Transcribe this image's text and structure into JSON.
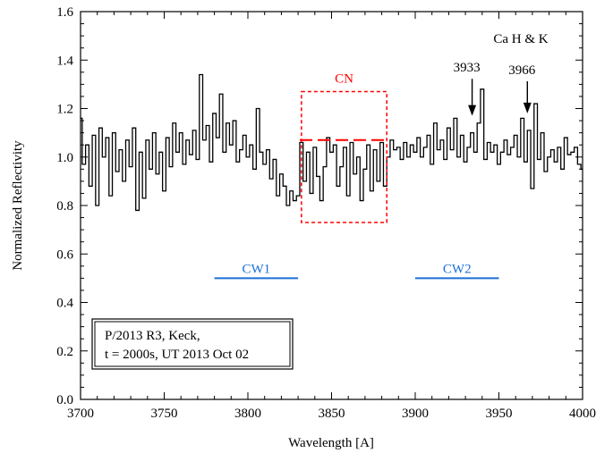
{
  "chart_data": {
    "type": "line",
    "title": "",
    "xlabel": "Wavelength [A]",
    "ylabel": "Normalized Reflectivity",
    "xlim": [
      3700,
      4000
    ],
    "ylim": [
      0.0,
      1.6
    ],
    "x_ticks": [
      3700,
      3750,
      3800,
      3850,
      3900,
      3950,
      4000
    ],
    "y_ticks": [
      0.0,
      0.2,
      0.4,
      0.6,
      0.8,
      1.0,
      1.2,
      1.4,
      1.6
    ],
    "x_tick_labels": [
      "3700",
      "3750",
      "3800",
      "3850",
      "3900",
      "3950",
      "4000"
    ],
    "y_tick_labels": [
      "0.0",
      "0.2",
      "0.4",
      "0.6",
      "0.8",
      "1.0",
      "1.2",
      "1.4",
      "1.6"
    ],
    "grid": false,
    "series": [
      {
        "style": "step",
        "color": "#000000",
        "x": [
          3700,
          3702,
          3704,
          3706,
          3708,
          3710,
          3712,
          3714,
          3716,
          3718,
          3720,
          3722,
          3724,
          3726,
          3728,
          3730,
          3732,
          3734,
          3736,
          3738,
          3740,
          3742,
          3744,
          3746,
          3748,
          3750,
          3752,
          3754,
          3756,
          3758,
          3760,
          3762,
          3764,
          3766,
          3768,
          3770,
          3772,
          3774,
          3776,
          3778,
          3780,
          3782,
          3784,
          3786,
          3788,
          3790,
          3792,
          3794,
          3796,
          3798,
          3800,
          3802,
          3804,
          3806,
          3808,
          3810,
          3812,
          3814,
          3816,
          3818,
          3820,
          3822,
          3824,
          3826,
          3828,
          3830,
          3832,
          3834,
          3836,
          3838,
          3840,
          3842,
          3844,
          3846,
          3848,
          3850,
          3852,
          3854,
          3856,
          3858,
          3860,
          3862,
          3864,
          3866,
          3868,
          3870,
          3872,
          3874,
          3876,
          3878,
          3880,
          3882,
          3884,
          3886,
          3888,
          3890,
          3892,
          3894,
          3896,
          3898,
          3900,
          3902,
          3904,
          3906,
          3908,
          3910,
          3912,
          3914,
          3916,
          3918,
          3920,
          3922,
          3924,
          3926,
          3928,
          3930,
          3932,
          3934,
          3936,
          3938,
          3940,
          3942,
          3944,
          3946,
          3948,
          3950,
          3952,
          3954,
          3956,
          3958,
          3960,
          3962,
          3964,
          3966,
          3968,
          3970,
          3972,
          3974,
          3976,
          3978,
          3980,
          3982,
          3984,
          3986,
          3988,
          3990,
          3992,
          3994,
          3996,
          3998,
          4000
        ],
        "y": [
          1.16,
          0.97,
          1.05,
          0.88,
          1.09,
          0.8,
          1.12,
          1.0,
          1.08,
          0.84,
          1.1,
          0.94,
          1.03,
          0.9,
          1.07,
          0.96,
          1.12,
          0.78,
          1.02,
          0.83,
          1.07,
          0.95,
          1.1,
          0.93,
          1.02,
          0.86,
          1.08,
          0.96,
          1.14,
          1.02,
          1.1,
          0.97,
          1.07,
          1.01,
          1.11,
          0.99,
          1.34,
          1.07,
          1.13,
          0.98,
          1.18,
          1.08,
          1.26,
          1.02,
          1.14,
          1.05,
          1.15,
          0.98,
          1.03,
          1.09,
          1.0,
          1.05,
          0.95,
          1.2,
          1.02,
          0.97,
          1.03,
          0.91,
          0.99,
          0.84,
          0.93,
          0.88,
          0.8,
          0.86,
          0.82,
          0.84,
          1.06,
          0.9,
          1.02,
          0.85,
          1.04,
          0.92,
          0.82,
          0.96,
          1.08,
          1.02,
          1.05,
          0.88,
          0.96,
          1.04,
          0.84,
          1.06,
          0.93,
          1.0,
          0.82,
          0.95,
          1.05,
          0.86,
          1.03,
          0.9,
          1.06,
          0.88,
          1.0,
          1.07,
          1.03,
          1.04,
          0.99,
          1.06,
          1.0,
          1.05,
          1.02,
          1.08,
          1.0,
          1.04,
          1.09,
          0.97,
          1.14,
          1.03,
          1.07,
          0.99,
          1.12,
          1.03,
          1.16,
          1.0,
          1.09,
          0.98,
          1.04,
          1.1,
          1.02,
          1.14,
          1.28,
          0.99,
          1.06,
          1.02,
          1.05,
          0.97,
          1.02,
          1.07,
          1.01,
          1.04,
          1.09,
          1.0,
          1.16,
          0.98,
          1.11,
          0.87,
          1.22,
          0.99,
          1.1,
          0.94,
          1.0,
          1.03,
          0.98,
          1.04,
          0.95,
          1.08,
          1.01,
          1.02,
          1.04,
          0.97,
          0.95
        ]
      }
    ],
    "box": {
      "label": "CN",
      "x0": 3832,
      "x1": 3883,
      "y0": 0.73,
      "y1": 1.27,
      "color": "#ff0000"
    },
    "dashed_line": {
      "x0": 3831,
      "x1": 3882,
      "y": 1.07,
      "color": "#ff0000"
    },
    "continuum_windows": [
      {
        "label": "CW1",
        "x0": 3780,
        "x1": 3830,
        "y": 0.5,
        "color": "#1c6fd6"
      },
      {
        "label": "CW2",
        "x0": 3900,
        "x1": 3950,
        "y": 0.5,
        "color": "#1c6fd6"
      }
    ],
    "annotations": {
      "group_label": "Ca H & K",
      "arrows": [
        {
          "label": "3933",
          "x": 3934,
          "y_top": 1.33,
          "y_tip": 1.17
        },
        {
          "label": "3966",
          "x": 3967,
          "y_top": 1.32,
          "y_tip": 1.18
        }
      ]
    },
    "info_box": {
      "lines": [
        "P/2013 R3, Keck,",
        "t = 2000s, UT 2013 Oct 02"
      ]
    }
  }
}
